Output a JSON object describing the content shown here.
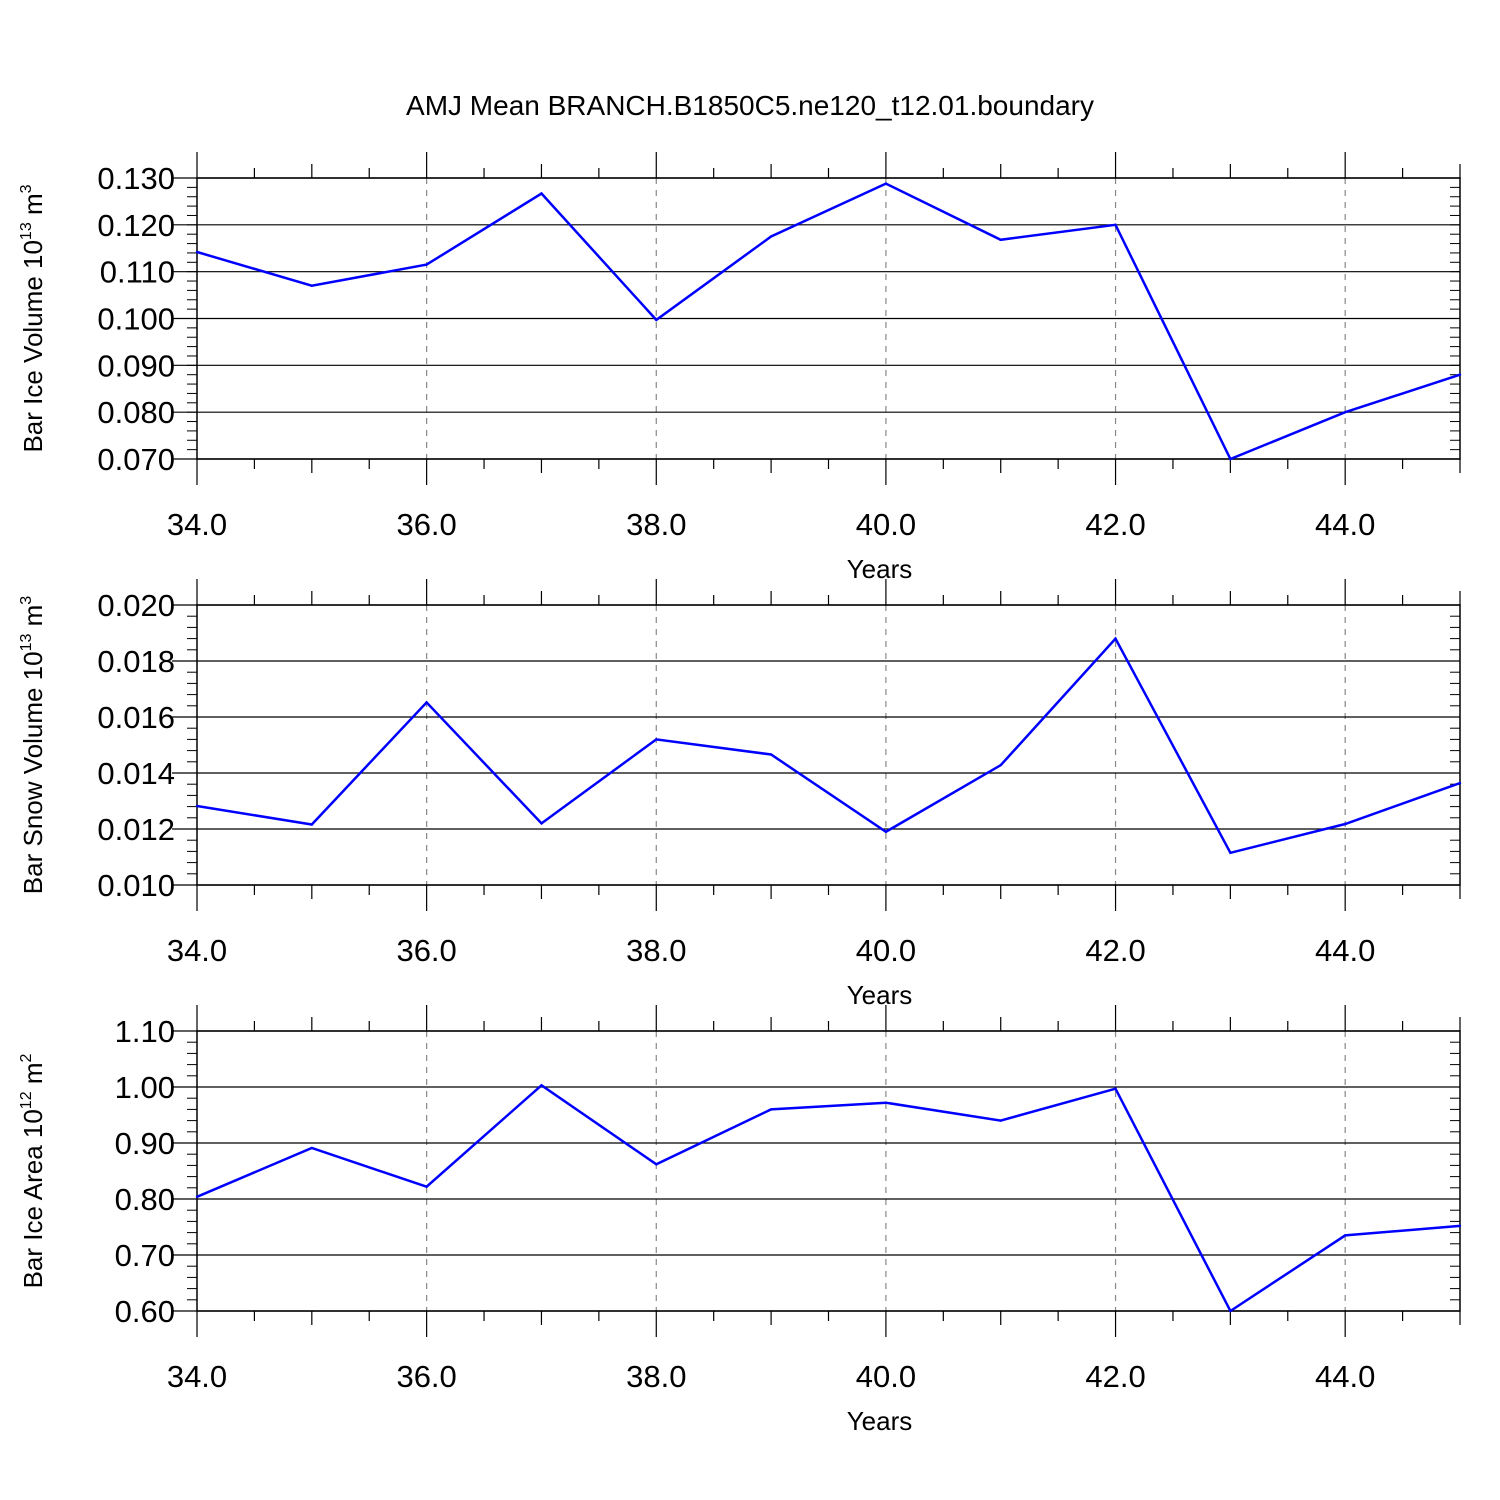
{
  "figure": {
    "title": "AMJ Mean BRANCH.B1850C5.ne120_t12.01.boundary"
  },
  "chart_data": [
    {
      "type": "line",
      "ylabel": {
        "text": "Bar Ice Volume 10",
        "sup1": "13",
        "mid": " m",
        "sup2": "3"
      },
      "xlabel": "Years",
      "xlim": [
        34,
        45
      ],
      "ylim": [
        0.07,
        0.13
      ],
      "xticks": [
        34,
        36,
        38,
        40,
        42,
        44
      ],
      "xtick_labels": [
        "34.0",
        "36.0",
        "38.0",
        "40.0",
        "42.0",
        "44.0"
      ],
      "yticks": [
        0.07,
        0.08,
        0.09,
        0.1,
        0.11,
        0.12,
        0.13
      ],
      "ytick_labels": [
        "0.070",
        "0.080",
        "0.090",
        "0.100",
        "0.110",
        "0.120",
        "0.130"
      ],
      "y_minor_step": 0.002,
      "grid": "vertical dashed at major x ticks",
      "series": [
        {
          "color": "#0000ff",
          "x": [
            34,
            35,
            36,
            37,
            38,
            39,
            40,
            41,
            42,
            43,
            44,
            45
          ],
          "y": [
            0.1142,
            0.107,
            0.1115,
            0.1267,
            0.0997,
            0.1175,
            0.1288,
            0.1168,
            0.12,
            0.07,
            0.08,
            0.088
          ]
        }
      ]
    },
    {
      "type": "line",
      "ylabel": {
        "text": "Bar Snow Volume 10",
        "sup1": "13",
        "mid": " m",
        "sup2": "3"
      },
      "xlabel": "Years",
      "xlim": [
        34,
        45
      ],
      "ylim": [
        0.01,
        0.02
      ],
      "xticks": [
        34,
        36,
        38,
        40,
        42,
        44
      ],
      "xtick_labels": [
        "34.0",
        "36.0",
        "38.0",
        "40.0",
        "42.0",
        "44.0"
      ],
      "yticks": [
        0.01,
        0.012,
        0.014,
        0.016,
        0.018,
        0.02
      ],
      "ytick_labels": [
        "0.010",
        "0.012",
        "0.014",
        "0.016",
        "0.018",
        "0.020"
      ],
      "y_minor_step": 0.0004,
      "grid": "vertical dashed at major x ticks",
      "series": [
        {
          "color": "#0000ff",
          "x": [
            34,
            35,
            36,
            37,
            38,
            39,
            40,
            41,
            42,
            43,
            44,
            45
          ],
          "y": [
            0.01282,
            0.01216,
            0.01652,
            0.0122,
            0.0152,
            0.01466,
            0.0119,
            0.01428,
            0.0188,
            0.01115,
            0.01218,
            0.01364
          ]
        }
      ]
    },
    {
      "type": "line",
      "ylabel": {
        "text": "Bar Ice Area 10",
        "sup1": "12",
        "mid": " m",
        "sup2": "2"
      },
      "xlabel": "Years",
      "xlim": [
        34,
        45
      ],
      "ylim": [
        0.6,
        1.1
      ],
      "xticks": [
        34,
        36,
        38,
        40,
        42,
        44
      ],
      "xtick_labels": [
        "34.0",
        "36.0",
        "38.0",
        "40.0",
        "42.0",
        "44.0"
      ],
      "yticks": [
        0.6,
        0.7,
        0.8,
        0.9,
        1.0,
        1.1
      ],
      "ytick_labels": [
        "0.60",
        "0.70",
        "0.80",
        "0.90",
        "1.00",
        "1.10"
      ],
      "y_minor_step": 0.02,
      "grid": "vertical dashed at major x ticks",
      "series": [
        {
          "color": "#0000ff",
          "x": [
            34,
            35,
            36,
            37,
            38,
            39,
            40,
            41,
            42,
            43,
            44,
            45
          ],
          "y": [
            0.804,
            0.891,
            0.822,
            1.003,
            0.862,
            0.96,
            0.972,
            0.94,
            0.997,
            0.6,
            0.735,
            0.752
          ]
        }
      ]
    }
  ]
}
